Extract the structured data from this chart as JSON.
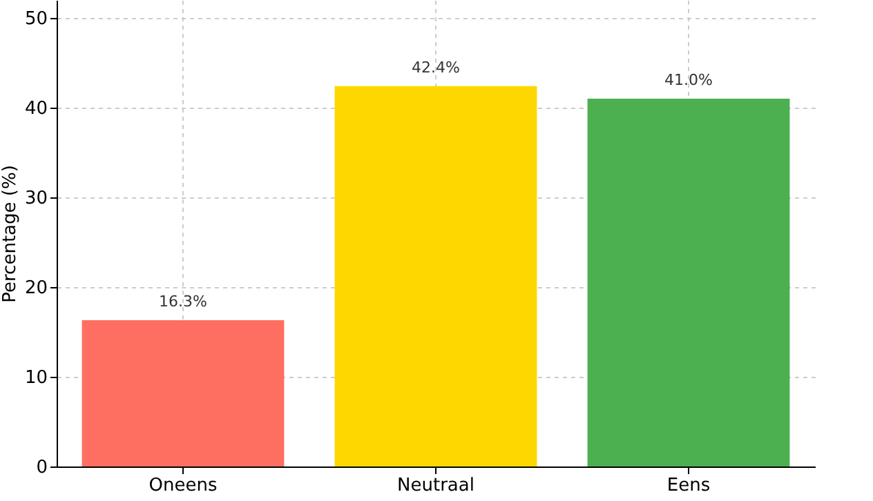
{
  "chart_data": {
    "type": "bar",
    "ylabel": "Percentage (%)",
    "categories": [
      "Oneens",
      "Neutraal",
      "Eens"
    ],
    "values": [
      16.3,
      42.4,
      41.0
    ],
    "colors": [
      "#ff6f61",
      "#ffd700",
      "#4caf50"
    ],
    "value_labels": [
      "16.3%",
      "42.4%",
      "41.0%"
    ],
    "ylim": [
      0,
      52
    ],
    "yticks": [
      0,
      10,
      20,
      30,
      40,
      50
    ],
    "grid": true
  }
}
